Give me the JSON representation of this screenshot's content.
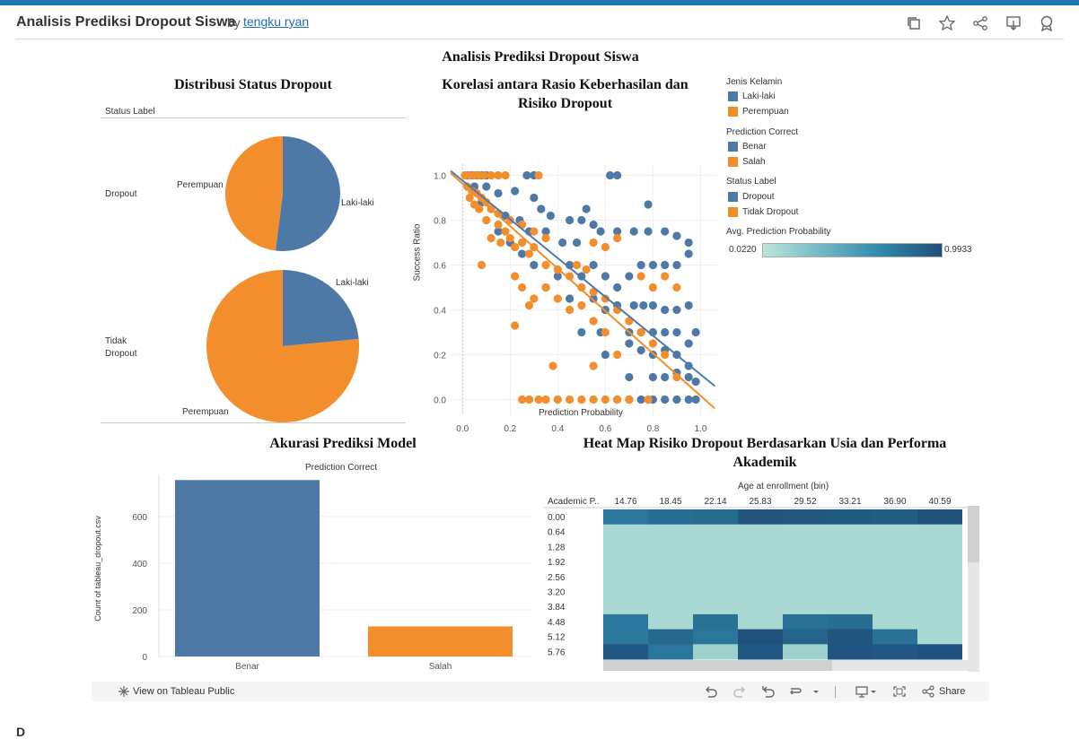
{
  "header": {
    "title": "Analisis Prediksi Dropout Siswa",
    "by": "by",
    "author": "tengku ryan"
  },
  "dashboard": {
    "title": "Analisis Prediksi Dropout Siswa"
  },
  "colors": {
    "blue": "#4e79a7",
    "orange": "#f28e2b",
    "brand": "#1f77b4",
    "heat_low": "#bde5d9",
    "heat_high": "#1f4e79"
  },
  "pie": {
    "title": "Distribusi Status Dropout",
    "header": "Status Label",
    "rows": [
      {
        "label": "Dropout",
        "slice_labels": [
          "Perempuan",
          "Laki-laki"
        ],
        "laki_share": 0.52
      },
      {
        "label_line1": "Tidak",
        "label_line2": "Dropout",
        "slice_labels": [
          "Laki-laki",
          "Perempuan"
        ],
        "laki_share": 0.235
      }
    ]
  },
  "scatter": {
    "title_line1": "Korelasi antara Rasio Keberhasilan dan",
    "title_line2": "Risiko Dropout",
    "xlabel": "Prediction Probability",
    "ylabel": "Success Ratio",
    "xticks": [
      "0.0",
      "0.2",
      "0.4",
      "0.6",
      "0.8",
      "1.0"
    ],
    "yticks": [
      "0.0",
      "0.2",
      "0.4",
      "0.6",
      "0.8",
      "1.0"
    ]
  },
  "legend": {
    "groups": [
      {
        "title": "Jenis Kelamin",
        "items": [
          "Laki-laki",
          "Perempuan"
        ]
      },
      {
        "title": "Prediction Correct",
        "items": [
          "Benar",
          "Salah"
        ]
      },
      {
        "title": "Status Label",
        "items": [
          "Dropout",
          "Tidak Dropout"
        ]
      }
    ],
    "gradient_title": "Avg. Prediction Probability",
    "gradient_min": "0.0220",
    "gradient_max": "0.9933"
  },
  "bar": {
    "title": "Akurasi Prediksi Model",
    "legend_title": "Prediction Correct",
    "ylabel": "Count of tableau_dropout.csv",
    "yticks": [
      "0",
      "200",
      "400",
      "600"
    ]
  },
  "heatmap": {
    "title_line1": "Heat Map Risiko Dropout Berdasarkan Usia dan Performa",
    "title_line2": "Akademik",
    "col_title": "Age at enrollment (bin)",
    "row_header": "Academic P..",
    "columns": [
      "14.76",
      "18.45",
      "22.14",
      "25.83",
      "29.52",
      "33.21",
      "36.90",
      "40.59"
    ],
    "rows": [
      "0.00",
      "0.64",
      "1.28",
      "1.92",
      "2.56",
      "3.20",
      "3.84",
      "4.48",
      "5.12",
      "5.76"
    ]
  },
  "chart_data": [
    {
      "type": "pie",
      "title": "Distribusi Status Dropout",
      "groups": [
        {
          "name": "Dropout",
          "slices": [
            {
              "label": "Laki-laki",
              "share": 0.52
            },
            {
              "label": "Perempuan",
              "share": 0.48
            }
          ]
        },
        {
          "name": "Tidak Dropout",
          "slices": [
            {
              "label": "Laki-laki",
              "share": 0.235
            },
            {
              "label": "Perempuan",
              "share": 0.765
            }
          ]
        }
      ]
    },
    {
      "type": "scatter",
      "title": "Korelasi antara Rasio Keberhasilan dan Risiko Dropout",
      "xlabel": "Prediction Probability",
      "ylabel": "Success Ratio",
      "xlim": [
        -0.05,
        1.07
      ],
      "ylim": [
        -0.07,
        1.05
      ],
      "grid": true,
      "series": [
        {
          "name": "Laki-laki",
          "color": "#4e79a7",
          "points": [
            [
              0.02,
              1.0
            ],
            [
              0.04,
              1.0
            ],
            [
              0.06,
              1.0
            ],
            [
              0.08,
              1.0
            ],
            [
              0.1,
              1.0
            ],
            [
              0.27,
              1.0
            ],
            [
              0.3,
              1.0
            ],
            [
              0.62,
              1.0
            ],
            [
              0.65,
              1.0
            ],
            [
              0.05,
              0.95
            ],
            [
              0.1,
              0.95
            ],
            [
              0.15,
              0.92
            ],
            [
              0.22,
              0.93
            ],
            [
              0.3,
              0.9
            ],
            [
              0.33,
              0.85
            ],
            [
              0.37,
              0.82
            ],
            [
              0.45,
              0.8
            ],
            [
              0.5,
              0.8
            ],
            [
              0.52,
              0.85
            ],
            [
              0.55,
              0.78
            ],
            [
              0.08,
              0.88
            ],
            [
              0.12,
              0.85
            ],
            [
              0.18,
              0.82
            ],
            [
              0.24,
              0.8
            ],
            [
              0.28,
              0.75
            ],
            [
              0.35,
              0.75
            ],
            [
              0.42,
              0.7
            ],
            [
              0.48,
              0.7
            ],
            [
              0.58,
              0.75
            ],
            [
              0.65,
              0.75
            ],
            [
              0.72,
              0.75
            ],
            [
              0.78,
              0.75
            ],
            [
              0.85,
              0.75
            ],
            [
              0.9,
              0.73
            ],
            [
              0.95,
              0.7
            ],
            [
              0.78,
              0.87
            ],
            [
              0.3,
              0.6
            ],
            [
              0.4,
              0.55
            ],
            [
              0.5,
              0.55
            ],
            [
              0.55,
              0.6
            ],
            [
              0.6,
              0.55
            ],
            [
              0.65,
              0.5
            ],
            [
              0.7,
              0.55
            ],
            [
              0.75,
              0.6
            ],
            [
              0.8,
              0.6
            ],
            [
              0.85,
              0.6
            ],
            [
              0.9,
              0.6
            ],
            [
              0.95,
              0.65
            ],
            [
              0.25,
              0.65
            ],
            [
              0.35,
              0.5
            ],
            [
              0.45,
              0.45
            ],
            [
              0.55,
              0.45
            ],
            [
              0.6,
              0.4
            ],
            [
              0.65,
              0.42
            ],
            [
              0.72,
              0.42
            ],
            [
              0.76,
              0.42
            ],
            [
              0.8,
              0.42
            ],
            [
              0.85,
              0.4
            ],
            [
              0.9,
              0.4
            ],
            [
              0.95,
              0.42
            ],
            [
              0.98,
              0.3
            ],
            [
              0.7,
              0.3
            ],
            [
              0.75,
              0.3
            ],
            [
              0.8,
              0.3
            ],
            [
              0.85,
              0.3
            ],
            [
              0.9,
              0.3
            ],
            [
              0.95,
              0.25
            ],
            [
              0.6,
              0.2
            ],
            [
              0.7,
              0.25
            ],
            [
              0.75,
              0.22
            ],
            [
              0.8,
              0.2
            ],
            [
              0.85,
              0.22
            ],
            [
              0.9,
              0.2
            ],
            [
              0.95,
              0.15
            ],
            [
              0.7,
              0.1
            ],
            [
              0.8,
              0.1
            ],
            [
              0.85,
              0.1
            ],
            [
              0.9,
              0.12
            ],
            [
              0.95,
              0.1
            ],
            [
              0.98,
              0.08
            ],
            [
              0.65,
              0.0
            ],
            [
              0.7,
              0.0
            ],
            [
              0.75,
              0.0
            ],
            [
              0.8,
              0.0
            ],
            [
              0.85,
              0.0
            ],
            [
              0.9,
              0.0
            ],
            [
              0.95,
              0.0
            ],
            [
              0.98,
              0.0
            ],
            [
              0.5,
              0.3
            ],
            [
              0.58,
              0.3
            ],
            [
              0.45,
              0.6
            ],
            [
              0.15,
              0.75
            ],
            [
              0.2,
              0.7
            ]
          ]
        },
        {
          "name": "Perempuan",
          "color": "#f28e2b",
          "points": [
            [
              0.01,
              1.0
            ],
            [
              0.03,
              1.0
            ],
            [
              0.05,
              1.0
            ],
            [
              0.07,
              1.0
            ],
            [
              0.09,
              1.0
            ],
            [
              0.12,
              1.0
            ],
            [
              0.15,
              1.0
            ],
            [
              0.18,
              1.0
            ],
            [
              0.32,
              1.0
            ],
            [
              0.02,
              0.95
            ],
            [
              0.04,
              0.93
            ],
            [
              0.06,
              0.92
            ],
            [
              0.08,
              0.9
            ],
            [
              0.1,
              0.88
            ],
            [
              0.03,
              0.9
            ],
            [
              0.05,
              0.87
            ],
            [
              0.07,
              0.85
            ],
            [
              0.12,
              0.85
            ],
            [
              0.15,
              0.83
            ],
            [
              0.2,
              0.8
            ],
            [
              0.25,
              0.78
            ],
            [
              0.3,
              0.75
            ],
            [
              0.35,
              0.72
            ],
            [
              0.1,
              0.8
            ],
            [
              0.15,
              0.78
            ],
            [
              0.18,
              0.75
            ],
            [
              0.2,
              0.72
            ],
            [
              0.25,
              0.7
            ],
            [
              0.3,
              0.68
            ],
            [
              0.12,
              0.72
            ],
            [
              0.16,
              0.7
            ],
            [
              0.22,
              0.68
            ],
            [
              0.28,
              0.65
            ],
            [
              0.35,
              0.6
            ],
            [
              0.4,
              0.58
            ],
            [
              0.45,
              0.55
            ],
            [
              0.5,
              0.5
            ],
            [
              0.55,
              0.48
            ],
            [
              0.6,
              0.45
            ],
            [
              0.65,
              0.4
            ],
            [
              0.7,
              0.35
            ],
            [
              0.75,
              0.3
            ],
            [
              0.8,
              0.25
            ],
            [
              0.85,
              0.2
            ],
            [
              0.9,
              0.1
            ],
            [
              0.55,
              0.7
            ],
            [
              0.6,
              0.68
            ],
            [
              0.65,
              0.72
            ],
            [
              0.75,
              0.55
            ],
            [
              0.8,
              0.5
            ],
            [
              0.85,
              0.55
            ],
            [
              0.9,
              0.5
            ],
            [
              0.3,
              0.45
            ],
            [
              0.35,
              0.5
            ],
            [
              0.4,
              0.45
            ],
            [
              0.45,
              0.4
            ],
            [
              0.5,
              0.42
            ],
            [
              0.22,
              0.55
            ],
            [
              0.25,
              0.5
            ],
            [
              0.28,
              0.42
            ],
            [
              0.55,
              0.35
            ],
            [
              0.6,
              0.3
            ],
            [
              0.65,
              0.2
            ],
            [
              0.55,
              0.15
            ],
            [
              0.38,
              0.15
            ],
            [
              0.22,
              0.33
            ],
            [
              0.08,
              0.6
            ],
            [
              0.25,
              0.0
            ],
            [
              0.28,
              0.0
            ],
            [
              0.32,
              0.0
            ],
            [
              0.35,
              0.0
            ],
            [
              0.4,
              0.0
            ],
            [
              0.45,
              0.0
            ],
            [
              0.5,
              0.0
            ],
            [
              0.55,
              0.0
            ],
            [
              0.6,
              0.0
            ],
            [
              0.65,
              0.0
            ],
            [
              0.7,
              0.0
            ],
            [
              0.78,
              0.0
            ],
            [
              0.48,
              0.6
            ],
            [
              0.52,
              0.58
            ]
          ]
        }
      ],
      "trendlines": [
        {
          "series": "Laki-laki",
          "from": [
            -0.05,
            1.02
          ],
          "to": [
            1.06,
            0.06
          ]
        },
        {
          "series": "Perempuan",
          "from": [
            -0.05,
            1.01
          ],
          "to": [
            1.06,
            -0.04
          ]
        }
      ]
    },
    {
      "type": "bar",
      "title": "Akurasi Prediksi Model",
      "categories": [
        "Benar",
        "Salah"
      ],
      "values": [
        756,
        129
      ],
      "colors": [
        "#4e79a7",
        "#f28e2b"
      ],
      "ylabel": "Count of tableau_dropout.csv",
      "ylim": [
        0,
        780
      ]
    },
    {
      "type": "heatmap",
      "title": "Heat Map Risiko Dropout Berdasarkan Usia dan Performa Akademik",
      "columns": [
        "14.76",
        "18.45",
        "22.14",
        "25.83",
        "29.52",
        "33.21",
        "36.90",
        "40.59"
      ],
      "rows": [
        "0.00",
        "0.64",
        "1.28",
        "1.92",
        "2.56",
        "3.20",
        "3.84",
        "4.48",
        "5.12",
        "5.76"
      ],
      "vmin": 0.022,
      "vmax": 0.9933,
      "values": [
        [
          0.72,
          0.78,
          0.8,
          0.95,
          0.93,
          0.92,
          0.9,
          0.97
        ],
        [
          0.1,
          0.1,
          0.1,
          0.1,
          0.1,
          0.1,
          0.1,
          0.1
        ],
        [
          0.1,
          0.1,
          0.1,
          0.1,
          0.1,
          0.1,
          0.1,
          0.1
        ],
        [
          0.1,
          0.1,
          0.1,
          0.1,
          0.1,
          0.1,
          0.1,
          0.1
        ],
        [
          0.1,
          0.1,
          0.1,
          0.1,
          0.1,
          0.1,
          0.1,
          0.1
        ],
        [
          0.1,
          0.1,
          0.1,
          0.1,
          0.1,
          0.1,
          0.1,
          0.1
        ],
        [
          0.1,
          0.1,
          0.1,
          0.1,
          0.1,
          0.1,
          0.1,
          0.1
        ],
        [
          0.7,
          0.1,
          0.75,
          0.1,
          0.75,
          0.78,
          0.1,
          0.1
        ],
        [
          0.7,
          0.82,
          0.72,
          0.97,
          0.85,
          0.95,
          0.75,
          0.1
        ],
        [
          0.93,
          0.72,
          0.15,
          0.93,
          0.15,
          0.95,
          0.93,
          0.97
        ]
      ]
    }
  ],
  "footer": {
    "view_label": "View on Tableau Public",
    "share_label": "Share"
  },
  "below": {
    "cut_text": "D"
  }
}
